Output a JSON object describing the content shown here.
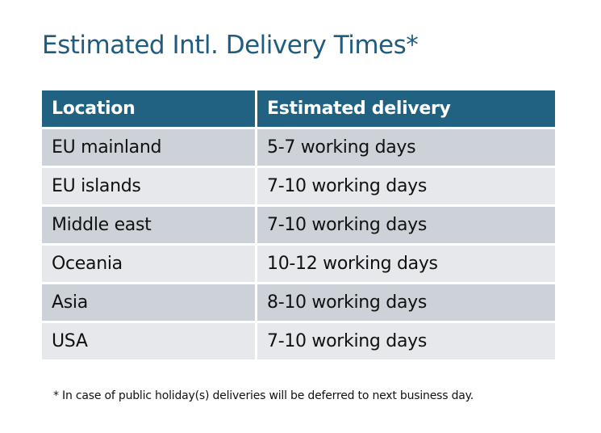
{
  "title": "Estimated Intl. Delivery Times*",
  "table": {
    "headers": [
      "Location",
      "Estimated delivery"
    ],
    "rows": [
      [
        "EU mainland",
        "5-7 working days"
      ],
      [
        "EU islands",
        "7-10 working days"
      ],
      [
        "Middle east",
        "7-10 working days"
      ],
      [
        "Oceania",
        "10-12 working days"
      ],
      [
        "Asia",
        "8-10 working days"
      ],
      [
        "USA",
        "7-10 working days"
      ]
    ]
  },
  "footnote": "* In case of public holiday(s) deliveries will be deferred to next business day.",
  "colors": {
    "header": "#216182",
    "title": "#1f5c7e",
    "row_dark": "#cdd2d9",
    "row_light": "#e6e8eb"
  }
}
